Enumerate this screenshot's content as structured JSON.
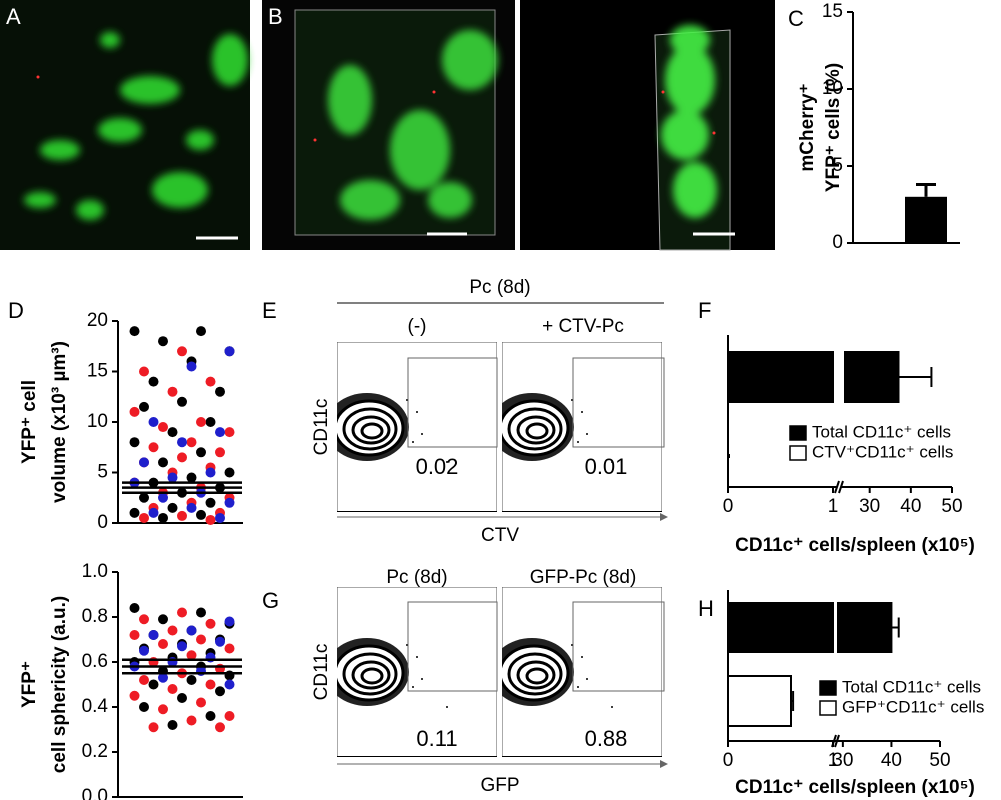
{
  "panel_labels": [
    "A",
    "B",
    "C",
    "D",
    "E",
    "F",
    "G",
    "H"
  ],
  "chart_data": [
    {
      "type": "bar",
      "ylabel": [
        "mCherry⁺",
        "YFP⁺ cells (%)"
      ],
      "values": [
        3
      ],
      "errors": [
        0.8
      ],
      "color": "#000000",
      "ylim": [
        0,
        15
      ],
      "yticks": [
        0,
        5,
        10,
        15
      ]
    },
    {
      "type": "scatter",
      "ylabel": [
        "YFP⁺ cell",
        "volume (x10³ µm³)"
      ],
      "series": [
        {
          "color": "#000000",
          "values": [
            19,
            19,
            18,
            17,
            16,
            14,
            13,
            12,
            11.5,
            10,
            9,
            8,
            7,
            6,
            5,
            4.5,
            4,
            3.5,
            3,
            2.5,
            2,
            1.5,
            1,
            0.8,
            0.5
          ]
        },
        {
          "color": "#ee1c25",
          "values": [
            17,
            15,
            14,
            13,
            11,
            10,
            9.5,
            9,
            8,
            7.5,
            7,
            6.5,
            6,
            5.5,
            5,
            4,
            3.5,
            3,
            2.5,
            2,
            1.5,
            1,
            0.7,
            0.5,
            0.3
          ]
        },
        {
          "color": "#1f1fcc",
          "values": [
            17,
            15.5,
            10,
            9,
            8,
            6,
            5,
            4.5,
            4,
            3,
            2.5,
            2,
            1.5,
            1,
            0.5
          ]
        }
      ],
      "mean": 3.5,
      "sem": 0.5,
      "ylim": [
        0,
        20
      ],
      "yticks": [
        0,
        5,
        10,
        15,
        20
      ]
    },
    {
      "type": "scatter",
      "ylabel": [
        "YFP⁺",
        "cell sphericity (a.u.)"
      ],
      "series": [
        {
          "color": "#000000",
          "values": [
            0.84,
            0.82,
            0.79,
            0.77,
            0.74,
            0.72,
            0.7,
            0.68,
            0.66,
            0.64,
            0.62,
            0.6,
            0.58,
            0.56,
            0.54,
            0.52,
            0.5,
            0.47,
            0.44,
            0.4,
            0.36,
            0.32
          ]
        },
        {
          "color": "#ee1c25",
          "values": [
            0.82,
            0.79,
            0.77,
            0.74,
            0.72,
            0.7,
            0.68,
            0.66,
            0.63,
            0.6,
            0.57,
            0.55,
            0.52,
            0.5,
            0.48,
            0.45,
            0.42,
            0.39,
            0.36,
            0.34,
            0.31,
            0.31
          ]
        },
        {
          "color": "#1f1fcc",
          "values": [
            0.78,
            0.74,
            0.72,
            0.69,
            0.67,
            0.65,
            0.62,
            0.6,
            0.58,
            0.56,
            0.53,
            0.5
          ]
        }
      ],
      "mean": 0.58,
      "sem": 0.03,
      "ylim": [
        0,
        1
      ],
      "yticks": [
        {
          "value": 0,
          "label": "0.0"
        },
        0.2,
        0.4,
        0.6,
        0.8,
        {
          "value": 1,
          "label": "1.0"
        }
      ]
    },
    {
      "type": "barh",
      "xlabel": "CD11c⁺ cells/spleen (x10⁵)",
      "series": [
        {
          "name": "Total CD11c⁺ cells",
          "color": "#000000",
          "values": [
            37
          ],
          "errors": [
            8
          ]
        },
        {
          "name": "CTV⁺CD11c⁺ cells",
          "color": "#ffffff",
          "values": [
            0
          ]
        }
      ],
      "xlim": [
        0,
        50
      ],
      "axis_break": [
        1,
        24
      ],
      "xticks": [
        0,
        1,
        30,
        40,
        50
      ]
    },
    {
      "type": "barh",
      "xlabel": "CD11c⁺ cells/spleen (x10⁵)",
      "series": [
        {
          "name": "Total CD11c⁺ cells",
          "color": "#000000",
          "values": [
            40
          ],
          "errors": [
            1.5
          ]
        },
        {
          "name": "GFP⁺CD11c⁺ cells",
          "color": "#ffffff",
          "values": [
            0.6
          ],
          "errors": [
            0.02
          ]
        }
      ],
      "xlim": [
        0,
        50
      ],
      "axis_break": [
        1,
        29
      ],
      "xticks": [
        0,
        1,
        30,
        40,
        50
      ]
    }
  ],
  "flow": [
    {
      "header": "Pc (8d)",
      "ylabel": "CD11c",
      "xlabel": "CTV",
      "plots": [
        {
          "title": "(-)",
          "gate": 0.02
        },
        {
          "title": "+ CTV-Pc",
          "gate": 0.01
        }
      ]
    },
    {
      "ylabel": "CD11c",
      "xlabel": "GFP",
      "plots": [
        {
          "title": "Pc (8d)",
          "gate": 0.11
        },
        {
          "title": "GFP-Pc (8d)",
          "gate": 0.88
        }
      ]
    }
  ]
}
